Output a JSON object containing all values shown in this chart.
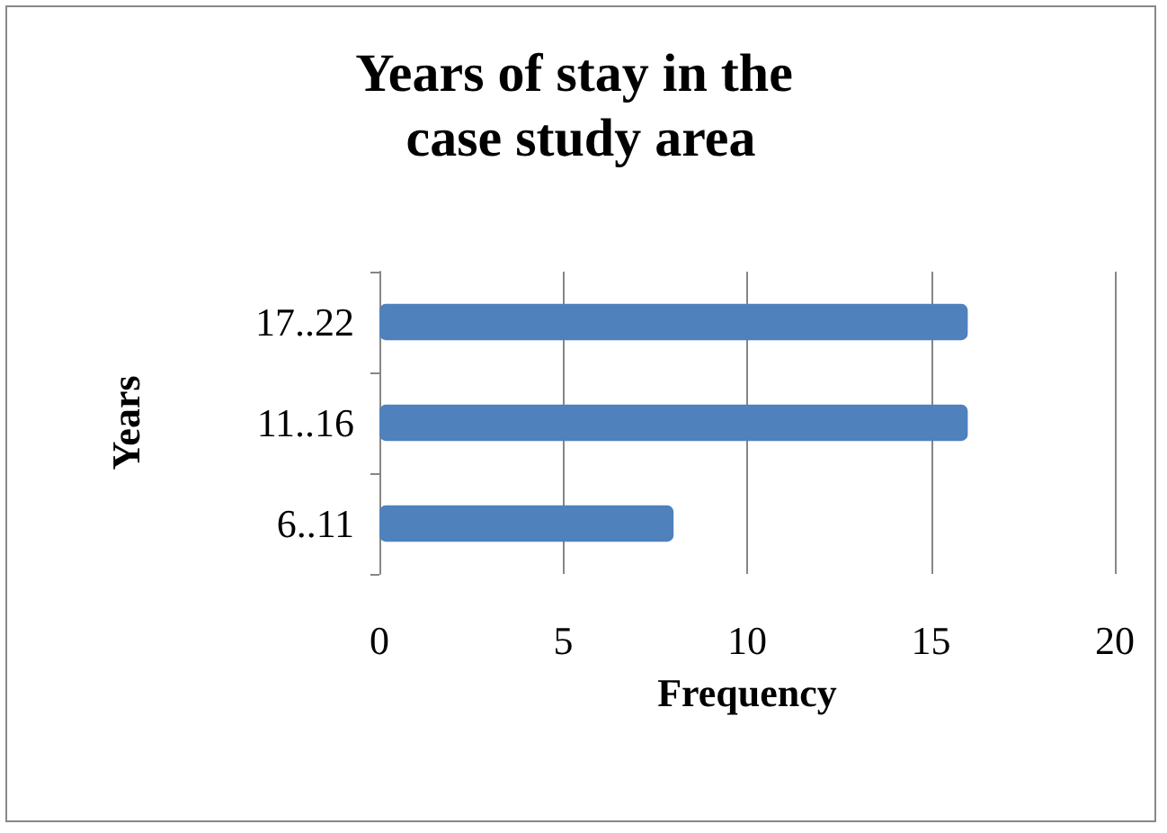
{
  "chart_data": {
    "type": "bar",
    "orientation": "horizontal",
    "title": "Years of stay in the case study area",
    "xlabel": "Frequency",
    "ylabel": "Years",
    "categories": [
      "17..22",
      "11..16",
      "6..11"
    ],
    "values": [
      16,
      16,
      8
    ],
    "color": "#4f81bd",
    "xlim": [
      0,
      20
    ],
    "xticks": [
      0,
      5,
      10,
      15,
      20
    ],
    "grid": "x"
  }
}
